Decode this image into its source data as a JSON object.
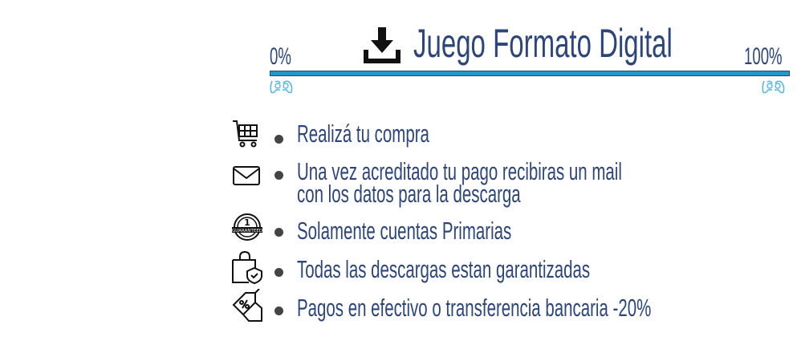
{
  "header": {
    "title": "Juego Formato Digital",
    "icon": "download-icon",
    "progress_start_label": "0%",
    "progress_end_label": "100%",
    "progress_percent": 100,
    "progress_color": "#2397c9",
    "gamepad_icon_color": "#5bb8e0"
  },
  "steps": [
    {
      "icon": "shopping-cart-icon",
      "text": "Realizá tu compra"
    },
    {
      "icon": "envelope-icon",
      "text": "Una vez acreditado tu pago recibiras un mail",
      "text2": "con los datos para la descarga"
    },
    {
      "icon": "guaranteed-badge-icon",
      "text": "Solamente cuentas Primarias"
    },
    {
      "icon": "shopping-bag-shield-icon",
      "text": "Todas las descargas estan garantizadas"
    },
    {
      "icon": "discount-tag-icon",
      "text": "Pagos en efectivo o transferencia bancaria -20%"
    }
  ],
  "colors": {
    "text": "#2c467c",
    "icon": "#111111"
  }
}
